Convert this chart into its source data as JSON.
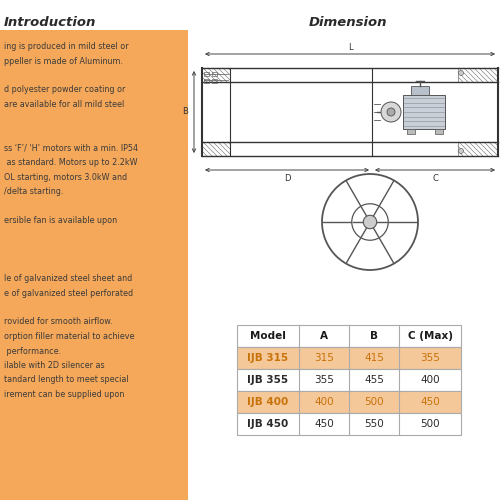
{
  "title_left": "Introduction",
  "title_right": "Dimension",
  "bg_color": "#ffffff",
  "intro_orange_bg": "#f5a85a",
  "intro_text_lines": [
    "ing is produced in mild steel or",
    "ppeller is made of Aluminum.",
    "",
    "d polyester powder coating or",
    "are available for all mild steel",
    "",
    "",
    "ss ‘F’/ ‘H’ motors with a min. IP54",
    " as standard. Motors up to 2.2kW",
    "OL starting, motors 3.0kW and",
    "/delta starting.",
    "",
    "ersible fan is available upon",
    "",
    "",
    "",
    "le of galvanized steel sheet and",
    "e of galvanized steel perforated",
    "",
    "rovided for smooth airflow.",
    "orption filler material to achieve",
    " performance.",
    "ilable with 2D silencer as",
    "tandard length to meet special",
    "irement can be supplied upon"
  ],
  "table_headers": [
    "Model",
    "A",
    "B",
    "C (Max)"
  ],
  "table_rows": [
    [
      "IJB 315",
      "315",
      "415",
      "355"
    ],
    [
      "IJB 355",
      "355",
      "455",
      "400"
    ],
    [
      "IJB 400",
      "400",
      "500",
      "450"
    ],
    [
      "IJB 450",
      "450",
      "550",
      "500"
    ]
  ],
  "highlighted_rows": [
    0,
    2
  ],
  "row_highlight": "#f5c89a",
  "row_normal": "#ffffff",
  "table_text_orange": "#c8720a",
  "table_border": "#aaaaaa",
  "text_color": "#3a3a3a",
  "hatch_color": "#888888"
}
